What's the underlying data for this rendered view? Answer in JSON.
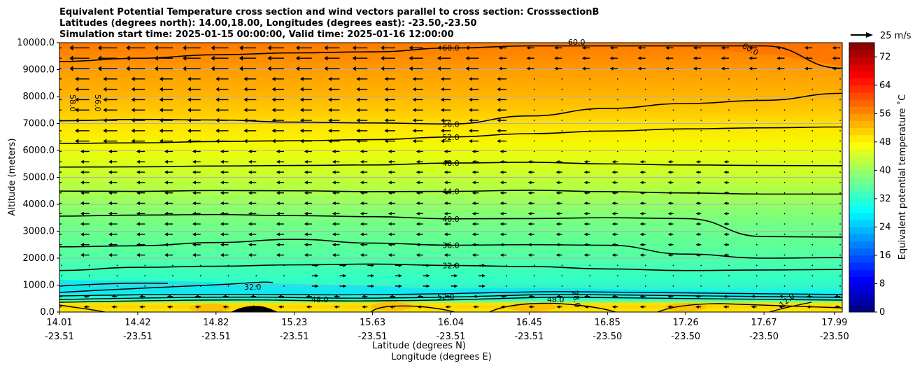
{
  "chart_data": {
    "type": "contourf",
    "title_lines": [
      "Equivalent Potential Temperature cross section and wind vectors parallel to cross section: CrosssectionB",
      "Latitudes (degrees north): 14.00,18.00, Longitudes (degrees east): -23.50,-23.50",
      "Simulation start time: 2025-01-15 00:00:00, Valid time: 2025-01-16 12:00:00"
    ],
    "ylabel": "Altitude (meters)",
    "xlabel_lat": "Latitude (degrees N)",
    "xlabel_lon": "Longitude (degrees E)",
    "ylim": [
      0,
      10000
    ],
    "y_ticks": [
      "0.0",
      "1000.0",
      "2000.0",
      "3000.0",
      "4000.0",
      "5000.0",
      "6000.0",
      "7000.0",
      "8000.0",
      "9000.0",
      "10000.0"
    ],
    "x_ticks": [
      {
        "lat": "14.01",
        "lon": "-23.51"
      },
      {
        "lat": "14.42",
        "lon": "-23.51"
      },
      {
        "lat": "14.82",
        "lon": "-23.51"
      },
      {
        "lat": "15.23",
        "lon": "-23.51"
      },
      {
        "lat": "15.63",
        "lon": "-23.51"
      },
      {
        "lat": "16.04",
        "lon": "-23.51"
      },
      {
        "lat": "16.45",
        "lon": "-23.51"
      },
      {
        "lat": "16.85",
        "lon": "-23.50"
      },
      {
        "lat": "17.26",
        "lon": "-23.50"
      },
      {
        "lat": "17.67",
        "lon": "-23.50"
      },
      {
        "lat": "17.99",
        "lon": "-23.50"
      }
    ],
    "x_tick_fraction": [
      0,
      0.1,
      0.2,
      0.3,
      0.4,
      0.5,
      0.6,
      0.7,
      0.8,
      0.9,
      0.99
    ],
    "colorbar": {
      "label": "Equivalent potential temperature  ˚C",
      "min": 0,
      "max": 76,
      "step": 2,
      "ticks": [
        "0",
        "8",
        "16",
        "24",
        "32",
        "40",
        "48",
        "56",
        "64",
        "72"
      ]
    },
    "quiver_key": "25 m/s",
    "contour_levels": [
      {
        "value": 32,
        "label": "32.0",
        "z": [
          1540,
          1660,
          1700,
          1750,
          1780,
          1730,
          1690,
          1600,
          1540,
          1560,
          1580
        ]
      },
      {
        "value": 36,
        "label": "36.0",
        "z": [
          2420,
          2460,
          2580,
          2700,
          2560,
          2480,
          2500,
          2480,
          2150,
          2000,
          2020
        ]
      },
      {
        "value": 40,
        "label": "40.0",
        "z": [
          3560,
          3600,
          3620,
          3580,
          3540,
          3460,
          3470,
          3500,
          3470,
          2800,
          2780
        ]
      },
      {
        "value": 44,
        "label": "44.0",
        "z": [
          4490,
          4480,
          4510,
          4500,
          4470,
          4480,
          4520,
          4470,
          4420,
          4380,
          4380
        ]
      },
      {
        "value": 48,
        "label": "48.0",
        "z": [
          5380,
          5390,
          5420,
          5440,
          5460,
          5530,
          5560,
          5500,
          5460,
          5440,
          5430
        ]
      },
      {
        "value": 52,
        "label": "52.0",
        "z": [
          6260,
          6280,
          6330,
          6360,
          6400,
          6500,
          6620,
          6720,
          6800,
          6840,
          6870
        ]
      },
      {
        "value": 56,
        "label": "56.0",
        "z": [
          7100,
          7150,
          7130,
          7050,
          7020,
          6980,
          7280,
          7560,
          7740,
          7860,
          8120
        ]
      },
      {
        "value": 60,
        "label": "60.0",
        "z": [
          9300,
          9420,
          9550,
          9620,
          9660,
          9800,
          9880,
          9880,
          9880,
          9880,
          9050
        ]
      }
    ],
    "low_level_labels": [
      "32.0",
      "48.0",
      "52.0",
      "28.0",
      "12.0"
    ],
    "vertical_labels": [
      "58.0",
      "56.0"
    ],
    "upper_labels": [
      "60.0",
      "60.0"
    ]
  }
}
